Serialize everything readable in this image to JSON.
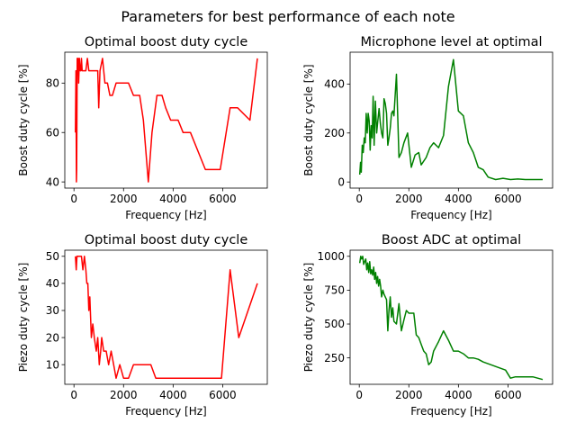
{
  "figure": {
    "suptitle": "Parameters for best performance of each note"
  },
  "chart_data": [
    {
      "type": "line",
      "title": "Optimal boost duty cycle",
      "xlabel": "Frequency [Hz]",
      "ylabel": "Boost duty cycle [%]",
      "xlim": [
        -370,
        7800
      ],
      "ylim": [
        37.5,
        92.5
      ],
      "xticks": [
        0,
        2000,
        4000,
        6000
      ],
      "yticks": [
        40,
        60,
        80
      ],
      "color": "#ff0000",
      "series": [
        {
          "x": [
            60,
            80,
            100,
            110,
            130,
            150,
            170,
            190,
            220,
            250,
            280,
            300,
            330,
            370,
            420,
            480,
            540,
            600,
            660,
            740,
            820,
            900,
            960,
            1000,
            1050,
            1150,
            1250,
            1350,
            1450,
            1550,
            1700,
            1850,
            2000,
            2200,
            2400,
            2650,
            2800,
            3000,
            3150,
            3350,
            3550,
            3700,
            3900,
            4200,
            4400,
            4700,
            5300,
            5700,
            5900,
            6300,
            6600,
            7100,
            7400
          ],
          "y": [
            60,
            85,
            40,
            45,
            90,
            85,
            90,
            80,
            90,
            85,
            85,
            90,
            85,
            85,
            85,
            85,
            90,
            85,
            85,
            85,
            85,
            85,
            85,
            70,
            85,
            90,
            80,
            80,
            75,
            75,
            80,
            80,
            80,
            80,
            75,
            75,
            65,
            40,
            60,
            75,
            75,
            70,
            65,
            65,
            60,
            60,
            45,
            45,
            45,
            70,
            70,
            65,
            90
          ]
        }
      ]
    },
    {
      "type": "line",
      "title": "Microphone level at optimal",
      "xlabel": "Frequency [Hz]",
      "ylabel": "Boost duty cycle [%]",
      "xlim": [
        -370,
        7800
      ],
      "ylim": [
        -25,
        530
      ],
      "xticks": [
        0,
        2000,
        4000,
        6000
      ],
      "yticks": [
        0,
        200,
        400
      ],
      "color": "#008000",
      "series": [
        {
          "x": [
            20,
            50,
            80,
            120,
            160,
            200,
            240,
            280,
            320,
            360,
            400,
            440,
            480,
            520,
            560,
            600,
            650,
            700,
            750,
            800,
            850,
            900,
            950,
            1000,
            1050,
            1100,
            1150,
            1200,
            1250,
            1300,
            1350,
            1400,
            1500,
            1600,
            1700,
            1800,
            1950,
            2100,
            2250,
            2400,
            2500,
            2700,
            2850,
            3000,
            3200,
            3400,
            3600,
            3800,
            4000,
            4200,
            4400,
            4600,
            4800,
            5000,
            5200,
            5500,
            5800,
            6100,
            6400,
            6700,
            7000,
            7400
          ],
          "y": [
            30,
            80,
            40,
            150,
            120,
            180,
            160,
            280,
            200,
            280,
            250,
            130,
            230,
            180,
            350,
            150,
            330,
            200,
            250,
            300,
            240,
            200,
            180,
            340,
            320,
            280,
            150,
            180,
            220,
            280,
            290,
            270,
            440,
            100,
            120,
            160,
            200,
            60,
            110,
            120,
            70,
            100,
            140,
            160,
            140,
            190,
            390,
            500,
            290,
            270,
            160,
            120,
            60,
            50,
            20,
            10,
            15,
            10,
            12,
            10,
            10,
            10
          ]
        }
      ]
    },
    {
      "type": "line",
      "title": "Optimal boost duty cycle",
      "xlabel": "Frequency [Hz]",
      "ylabel": "Piezo duty cycle [%]",
      "xlim": [
        -370,
        7800
      ],
      "ylim": [
        2.75,
        52.25
      ],
      "xticks": [
        0,
        2000,
        4000,
        6000
      ],
      "yticks": [
        10,
        20,
        30,
        40,
        50
      ],
      "color": "#ff0000",
      "series": [
        {
          "x": [
            60,
            90,
            120,
            170,
            230,
            300,
            360,
            420,
            480,
            520,
            560,
            600,
            640,
            700,
            760,
            820,
            900,
            960,
            1020,
            1080,
            1120,
            1200,
            1300,
            1400,
            1500,
            1600,
            1700,
            1850,
            2000,
            2200,
            2400,
            2600,
            2800,
            3100,
            3300,
            3600,
            4000,
            4400,
            4800,
            5300,
            5700,
            5950,
            6300,
            6650,
            7400
          ],
          "y": [
            50,
            45,
            50,
            50,
            50,
            50,
            45,
            50,
            45,
            40,
            40,
            30,
            35,
            20,
            25,
            20,
            15,
            20,
            10,
            15,
            20,
            15,
            15,
            10,
            15,
            10,
            5,
            10,
            5,
            5,
            10,
            10,
            10,
            10,
            5,
            5,
            5,
            5,
            5,
            5,
            5,
            5,
            45,
            20,
            40
          ]
        }
      ]
    },
    {
      "type": "line",
      "title": "Boost ADC at optimal",
      "xlabel": "Frequency [Hz]",
      "ylabel": "Piezo duty cycle [%]",
      "xlim": [
        -370,
        7800
      ],
      "ylim": [
        55,
        1045
      ],
      "xticks": [
        0,
        2000,
        4000,
        6000
      ],
      "yticks": [
        250,
        500,
        750,
        1000
      ],
      "color": "#008000",
      "series": [
        {
          "x": [
            20,
            60,
            100,
            140,
            180,
            220,
            260,
            300,
            340,
            380,
            420,
            460,
            500,
            540,
            580,
            620,
            660,
            700,
            740,
            780,
            820,
            860,
            900,
            950,
            1000,
            1050,
            1100,
            1150,
            1200,
            1250,
            1300,
            1350,
            1400,
            1500,
            1600,
            1700,
            1800,
            1900,
            2000,
            2200,
            2300,
            2400,
            2500,
            2600,
            2700,
            2800,
            2900,
            3000,
            3200,
            3400,
            3600,
            3800,
            4000,
            4200,
            4400,
            4600,
            4800,
            5000,
            5300,
            5600,
            5900,
            6100,
            6300,
            6600,
            7000,
            7400
          ],
          "y": [
            950,
            1000,
            980,
            1000,
            940,
            960,
            980,
            900,
            950,
            880,
            960,
            870,
            900,
            860,
            920,
            830,
            880,
            800,
            850,
            780,
            830,
            780,
            700,
            750,
            720,
            700,
            680,
            450,
            600,
            700,
            550,
            620,
            520,
            500,
            650,
            450,
            530,
            600,
            580,
            580,
            420,
            400,
            350,
            300,
            280,
            200,
            220,
            300,
            370,
            450,
            380,
            300,
            300,
            280,
            250,
            250,
            240,
            220,
            200,
            180,
            160,
            100,
            110,
            110,
            110,
            90
          ]
        }
      ]
    }
  ]
}
